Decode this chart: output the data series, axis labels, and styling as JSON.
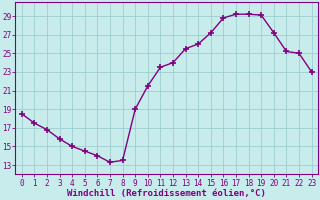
{
  "x": [
    0,
    1,
    2,
    3,
    4,
    5,
    6,
    7,
    8,
    9,
    10,
    11,
    12,
    13,
    14,
    15,
    16,
    17,
    18,
    19,
    20,
    21,
    22,
    23
  ],
  "y": [
    18.5,
    17.5,
    16.8,
    15.8,
    15.0,
    14.5,
    14.0,
    13.3,
    13.5,
    19.0,
    21.5,
    23.5,
    24.0,
    25.5,
    26.0,
    27.2,
    28.8,
    29.2,
    29.2,
    29.1,
    27.2,
    25.2,
    25.0,
    23.0
  ],
  "line_color": "#800080",
  "marker": "+",
  "marker_size": 5,
  "marker_linewidth": 1.2,
  "background_color": "#c8ecec",
  "grid_color": "#9fcfcf",
  "xlabel": "Windchill (Refroidissement éolien,°C)",
  "ylabel": "",
  "title": "",
  "xlim": [
    -0.5,
    23.5
  ],
  "ylim": [
    12.0,
    30.5
  ],
  "yticks": [
    13,
    15,
    17,
    19,
    21,
    23,
    25,
    27,
    29
  ],
  "xticks": [
    0,
    1,
    2,
    3,
    4,
    5,
    6,
    7,
    8,
    9,
    10,
    11,
    12,
    13,
    14,
    15,
    16,
    17,
    18,
    19,
    20,
    21,
    22,
    23
  ],
  "tick_color": "#800080",
  "tick_fontsize": 5.5,
  "xlabel_fontsize": 6.5,
  "label_color": "#800080",
  "spine_color": "#800080",
  "linewidth": 1.0
}
